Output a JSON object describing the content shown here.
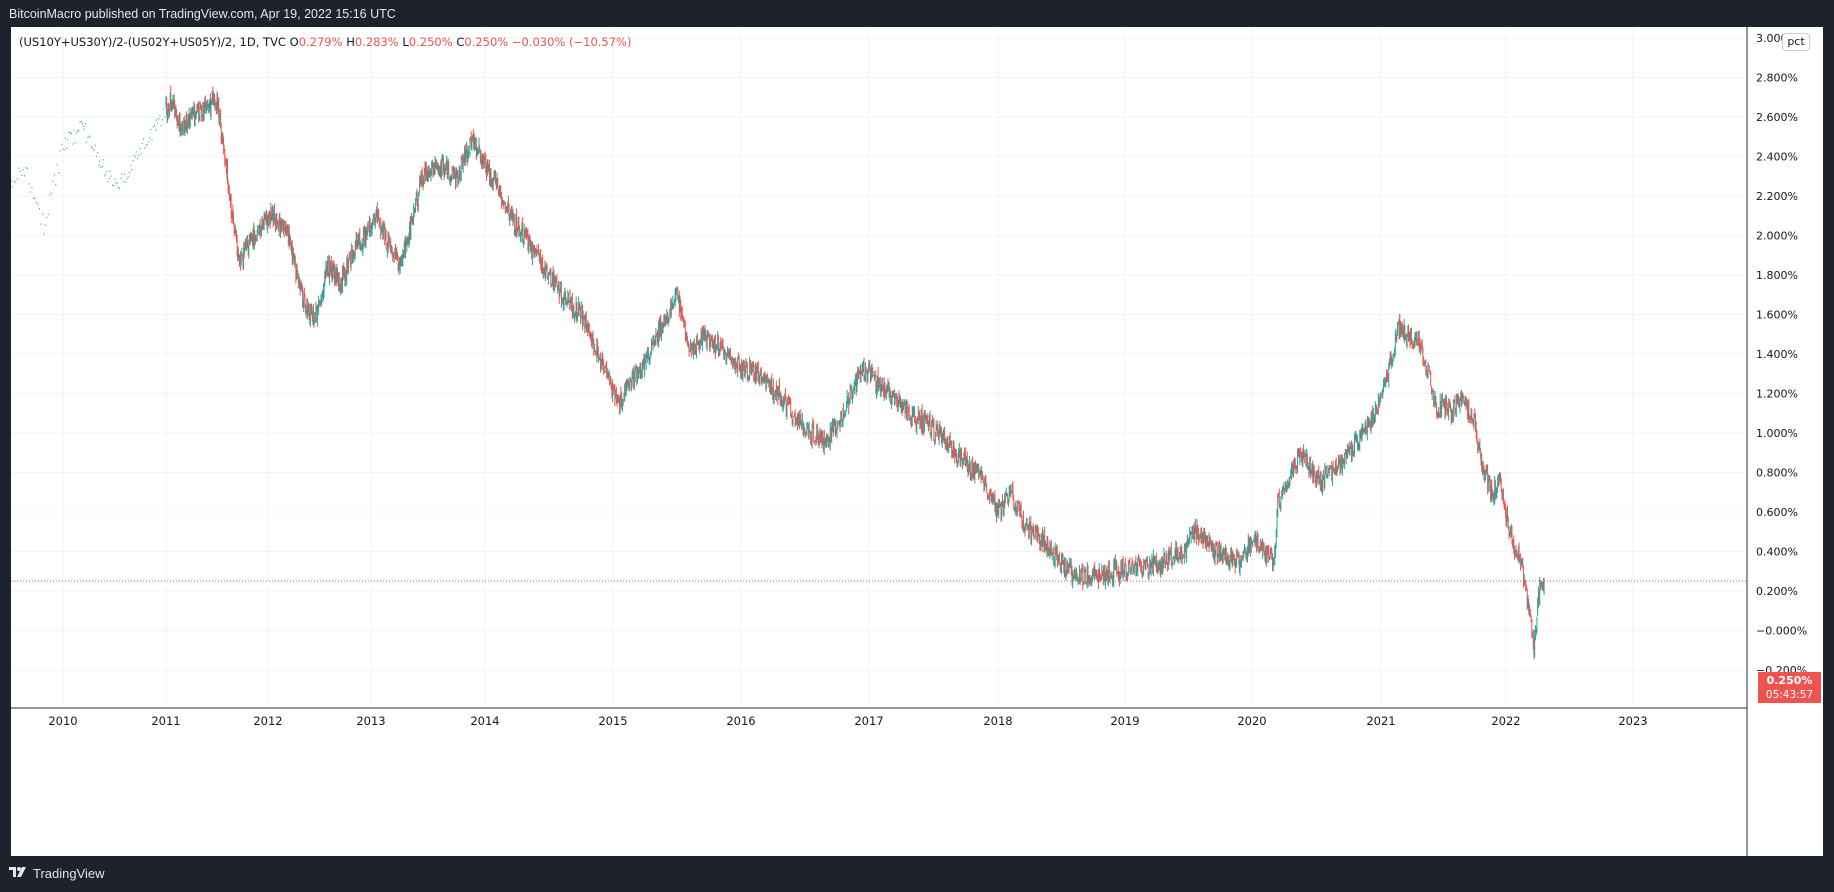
{
  "header": {
    "published": "BitcoinMacro published on TradingView.com, Apr 19, 2022 15:16 UTC"
  },
  "legend": {
    "symbol": "(US10Y+US30Y)/2-(US02Y+US05Y)/2, 1D, TVC",
    "open_label": "O",
    "open": "0.279%",
    "high_label": "H",
    "high": "0.283%",
    "low_label": "L",
    "low": "0.250%",
    "close_label": "C",
    "close": "0.250%",
    "change": "−0.030% (−10.57%)"
  },
  "scale_mode": "pct",
  "last_price": {
    "value": "0.250%",
    "countdown": "05:43:57"
  },
  "footer": {
    "brand": "TradingView"
  },
  "colors": {
    "background": "#1e222d",
    "up": "#26a69a",
    "down": "#ef5350",
    "grid": "#f0f3fa"
  },
  "chart_data": {
    "type": "line",
    "style": "candlestick",
    "x_ticks": [
      "2010",
      "2011",
      "2012",
      "2013",
      "2014",
      "2015",
      "2016",
      "2017",
      "2018",
      "2019",
      "2020",
      "2021",
      "2022",
      "2023"
    ],
    "y_ticks": [
      "3.000%",
      "2.800%",
      "2.600%",
      "2.400%",
      "2.200%",
      "2.000%",
      "1.800%",
      "1.600%",
      "1.400%",
      "1.200%",
      "1.000%",
      "0.800%",
      "0.600%",
      "0.400%",
      "0.200%",
      "−0.000%",
      "−0.200%"
    ],
    "ylim": [
      -0.35,
      3.05
    ],
    "xlim": [
      2009.6,
      2023.8
    ],
    "grid": true,
    "series": [
      {
        "x": [
          2009.55,
          2009.7,
          2009.85,
          2010.0,
          2010.2,
          2010.35,
          2010.45,
          2010.55,
          2010.7,
          2010.9,
          2011.05,
          2011.15,
          2011.25,
          2011.4,
          2011.5,
          2011.58,
          2011.65,
          2011.72,
          2011.8,
          2011.95,
          2012.05,
          2012.2,
          2012.3,
          2012.4,
          2012.48,
          2012.58,
          2012.7,
          2012.85,
          2012.95,
          2013.05,
          2013.15,
          2013.25,
          2013.35,
          2013.45,
          2013.6,
          2013.75,
          2013.9,
          2014.0,
          2014.1,
          2014.2,
          2014.3,
          2014.45,
          2014.6,
          2014.75,
          2014.95,
          2015.05,
          2015.12,
          2015.2,
          2015.35,
          2015.5,
          2015.6,
          2015.7,
          2015.8,
          2015.95,
          2016.1,
          2016.3,
          2016.45,
          2016.55,
          2016.65,
          2016.8,
          2016.92,
          2017.0,
          2017.15,
          2017.3,
          2017.45,
          2017.6,
          2017.75,
          2017.9,
          2018.0,
          2018.1,
          2018.2,
          2018.35,
          2018.5,
          2018.65,
          2018.8,
          2018.95,
          2019.1,
          2019.3,
          2019.45,
          2019.55,
          2019.65,
          2019.75,
          2019.9,
          2020.0,
          2020.1,
          2020.17,
          2020.2,
          2020.3,
          2020.4,
          2020.5,
          2020.6,
          2020.7,
          2020.8,
          2020.95,
          2021.05,
          2021.15,
          2021.22,
          2021.3,
          2021.38,
          2021.45,
          2021.5,
          2021.55,
          2021.65,
          2021.75,
          2021.8,
          2021.88,
          2021.95,
          2022.0,
          2022.05,
          2022.12,
          2022.18,
          2022.22,
          2022.26,
          2022.3
        ],
        "y": [
          2.2,
          2.35,
          2.05,
          2.45,
          2.55,
          2.4,
          2.3,
          2.25,
          2.4,
          2.55,
          2.68,
          2.55,
          2.6,
          2.65,
          2.68,
          2.4,
          2.1,
          1.85,
          1.95,
          2.05,
          2.1,
          2.0,
          1.75,
          1.6,
          1.6,
          1.85,
          1.75,
          1.95,
          2.0,
          2.1,
          1.95,
          1.85,
          2.05,
          2.3,
          2.35,
          2.3,
          2.48,
          2.35,
          2.25,
          2.1,
          2.0,
          1.85,
          1.7,
          1.6,
          1.3,
          1.15,
          1.25,
          1.3,
          1.5,
          1.7,
          1.4,
          1.5,
          1.45,
          1.35,
          1.3,
          1.2,
          1.05,
          1.0,
          0.95,
          1.1,
          1.3,
          1.3,
          1.2,
          1.1,
          1.05,
          0.95,
          0.85,
          0.75,
          0.6,
          0.7,
          0.55,
          0.45,
          0.35,
          0.27,
          0.28,
          0.3,
          0.32,
          0.35,
          0.4,
          0.5,
          0.45,
          0.38,
          0.35,
          0.45,
          0.4,
          0.35,
          0.65,
          0.8,
          0.9,
          0.75,
          0.8,
          0.85,
          0.95,
          1.1,
          1.3,
          1.55,
          1.48,
          1.45,
          1.3,
          1.1,
          1.15,
          1.1,
          1.18,
          1.05,
          0.85,
          0.7,
          0.75,
          0.6,
          0.45,
          0.35,
          0.1,
          -0.1,
          0.2,
          0.27
        ]
      }
    ]
  }
}
